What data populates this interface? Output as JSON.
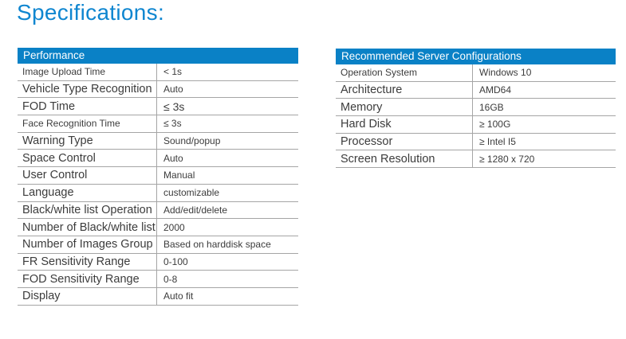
{
  "page": {
    "title": "Specifications:"
  },
  "colors": {
    "title_blue": "#0f86d0",
    "table_header_bg": "#0a81c6",
    "table_header_text": "#ffffff",
    "row_divider": "#a5a5a5",
    "body_text": "#3c3c3c"
  },
  "tables": [
    {
      "id": "performance",
      "header": "Performance",
      "rows": [
        {
          "label": "Image Upload Time",
          "value": "< 1s",
          "label_small": true
        },
        {
          "label": "Vehicle Type Recognition",
          "value": "Auto"
        },
        {
          "label": "FOD Time",
          "value": "≤ 3s",
          "value_large": true
        },
        {
          "label": "Face Recognition Time",
          "value": "≤ 3s",
          "label_small": true
        },
        {
          "label": "Warning Type",
          "value": "Sound/popup"
        },
        {
          "label": "Space Control",
          "value": "Auto"
        },
        {
          "label": "User Control",
          "value": "Manual"
        },
        {
          "label": "Language",
          "value": "customizable"
        },
        {
          "label": "Black/white list Operation",
          "value": "Add/edit/delete"
        },
        {
          "label": "Number of Black/white list",
          "value": "2000"
        },
        {
          "label": "Number of Images Group",
          "value": "Based on harddisk space"
        },
        {
          "label": "FR Sensitivity Range",
          "value": "0-100"
        },
        {
          "label": "FOD Sensitivity Range",
          "value": "0-8"
        },
        {
          "label": "Display",
          "value": "Auto fit"
        }
      ]
    },
    {
      "id": "server-config",
      "header": "Recommended Server Configurations",
      "rows": [
        {
          "label": "Operation System",
          "value": "Windows 10",
          "label_small": true
        },
        {
          "label": "Architecture",
          "value": "AMD64"
        },
        {
          "label": "Memory",
          "value": "16GB"
        },
        {
          "label": "Hard Disk",
          "value": "≥ 100G"
        },
        {
          "label": "Processor",
          "value": "≥ Intel I5"
        },
        {
          "label": "Screen Resolution",
          "value": "≥ 1280 x 720"
        }
      ]
    }
  ]
}
